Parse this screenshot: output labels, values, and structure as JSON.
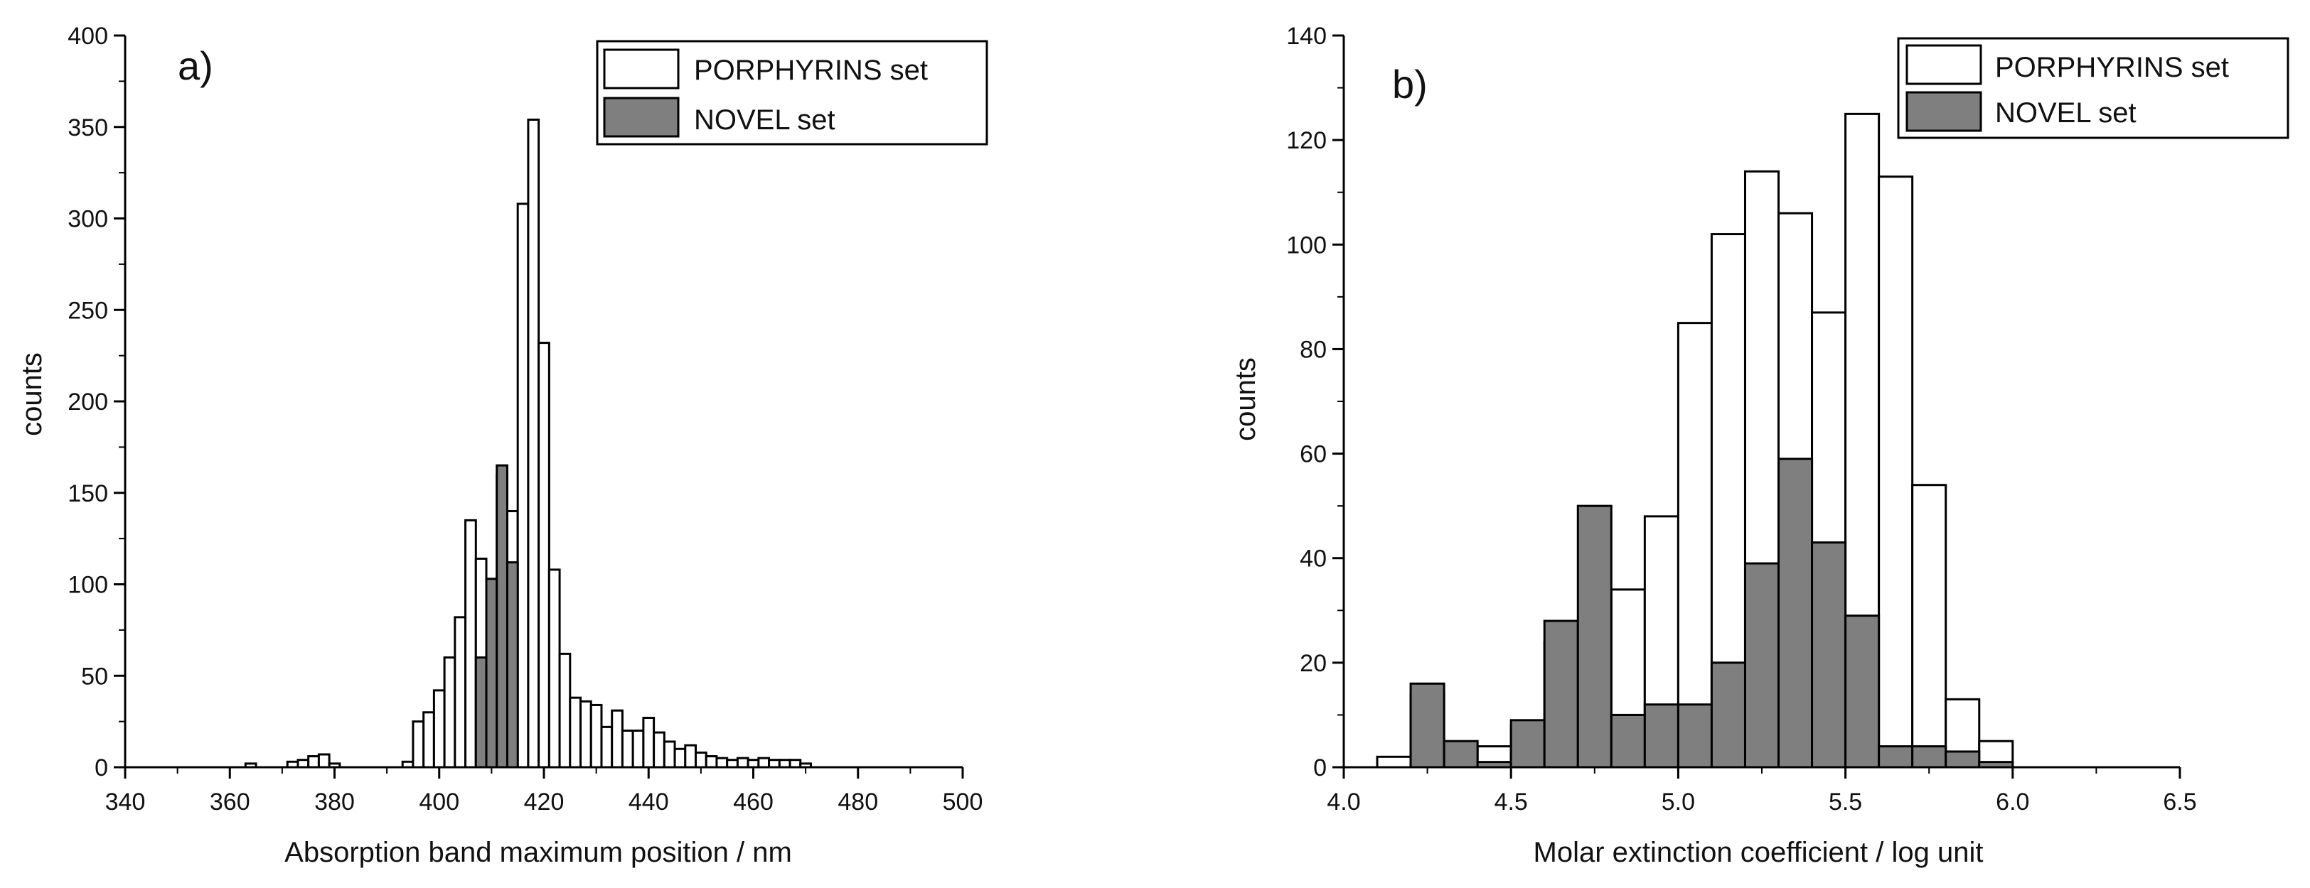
{
  "colors": {
    "porphyrins_fill": "#ffffff",
    "novel_fill": "#7f7f7f",
    "bar_stroke": "#000000",
    "axis": "#000000"
  },
  "chart_data": [
    {
      "type": "bar",
      "panel_label": "a)",
      "xlabel": "Absorption band maximum position / nm",
      "ylabel": "counts",
      "xlim": [
        340,
        500
      ],
      "ylim": [
        0,
        400
      ],
      "x_ticks": [
        340,
        360,
        380,
        400,
        420,
        440,
        460,
        480,
        500
      ],
      "y_ticks": [
        0,
        50,
        100,
        150,
        200,
        250,
        300,
        350,
        400
      ],
      "bin_width": 2,
      "legend": {
        "placement": "top-right",
        "entries": [
          "PORPHYRINS set",
          "NOVEL set"
        ]
      },
      "grid": false,
      "series": [
        {
          "name": "PORPHYRINS set",
          "color": "#ffffff",
          "x": [
            364,
            372,
            374,
            376,
            378,
            380,
            394,
            396,
            398,
            400,
            402,
            404,
            406,
            408,
            410,
            412,
            414,
            416,
            418,
            420,
            422,
            424,
            426,
            428,
            430,
            432,
            434,
            436,
            438,
            440,
            442,
            444,
            446,
            448,
            450,
            452,
            454,
            456,
            458,
            460,
            462,
            464,
            466,
            468,
            470
          ],
          "values": [
            2,
            3,
            4,
            6,
            7,
            2,
            3,
            25,
            30,
            42,
            60,
            82,
            135,
            114,
            100,
            160,
            140,
            308,
            354,
            232,
            108,
            62,
            38,
            36,
            34,
            22,
            31,
            20,
            20,
            27,
            19,
            14,
            10,
            12,
            8,
            6,
            5,
            4,
            5,
            4,
            5,
            4,
            4,
            4,
            2
          ]
        },
        {
          "name": "NOVEL set",
          "color": "#7f7f7f",
          "x": [
            408,
            410,
            412,
            414
          ],
          "values": [
            60,
            103,
            165,
            112
          ]
        }
      ]
    },
    {
      "type": "bar",
      "panel_label": "b)",
      "xlabel": "Molar extinction coefficient / log unit",
      "ylabel": "counts",
      "xlim": [
        4.0,
        6.5
      ],
      "ylim": [
        0,
        140
      ],
      "x_ticks": [
        "4.0",
        "4.5",
        "5.0",
        "5.5",
        "6.0",
        "6.5"
      ],
      "y_ticks": [
        0,
        20,
        40,
        60,
        80,
        100,
        120,
        140
      ],
      "bin_width": 0.1,
      "legend": {
        "placement": "top-right",
        "entries": [
          "PORPHYRINS set",
          "NOVEL set"
        ]
      },
      "grid": false,
      "series": [
        {
          "name": "PORPHYRINS set",
          "color": "#ffffff",
          "x": [
            4.15,
            4.25,
            4.35,
            4.45,
            4.55,
            4.65,
            4.75,
            4.85,
            4.95,
            5.05,
            5.15,
            5.25,
            5.35,
            5.45,
            5.55,
            5.65,
            5.75,
            5.85,
            5.95
          ],
          "values": [
            2,
            14,
            4,
            4,
            8,
            24,
            28,
            34,
            48,
            85,
            102,
            114,
            106,
            87,
            125,
            113,
            54,
            13,
            5
          ]
        },
        {
          "name": "NOVEL set",
          "color": "#7f7f7f",
          "x": [
            4.25,
            4.35,
            4.45,
            4.55,
            4.65,
            4.75,
            4.85,
            4.95,
            5.05,
            5.15,
            5.25,
            5.35,
            5.45,
            5.55,
            5.65,
            5.75,
            5.85,
            5.95
          ],
          "values": [
            16,
            5,
            1,
            9,
            28,
            50,
            10,
            12,
            12,
            20,
            39,
            59,
            43,
            29,
            4,
            4,
            3,
            1
          ]
        }
      ]
    }
  ]
}
